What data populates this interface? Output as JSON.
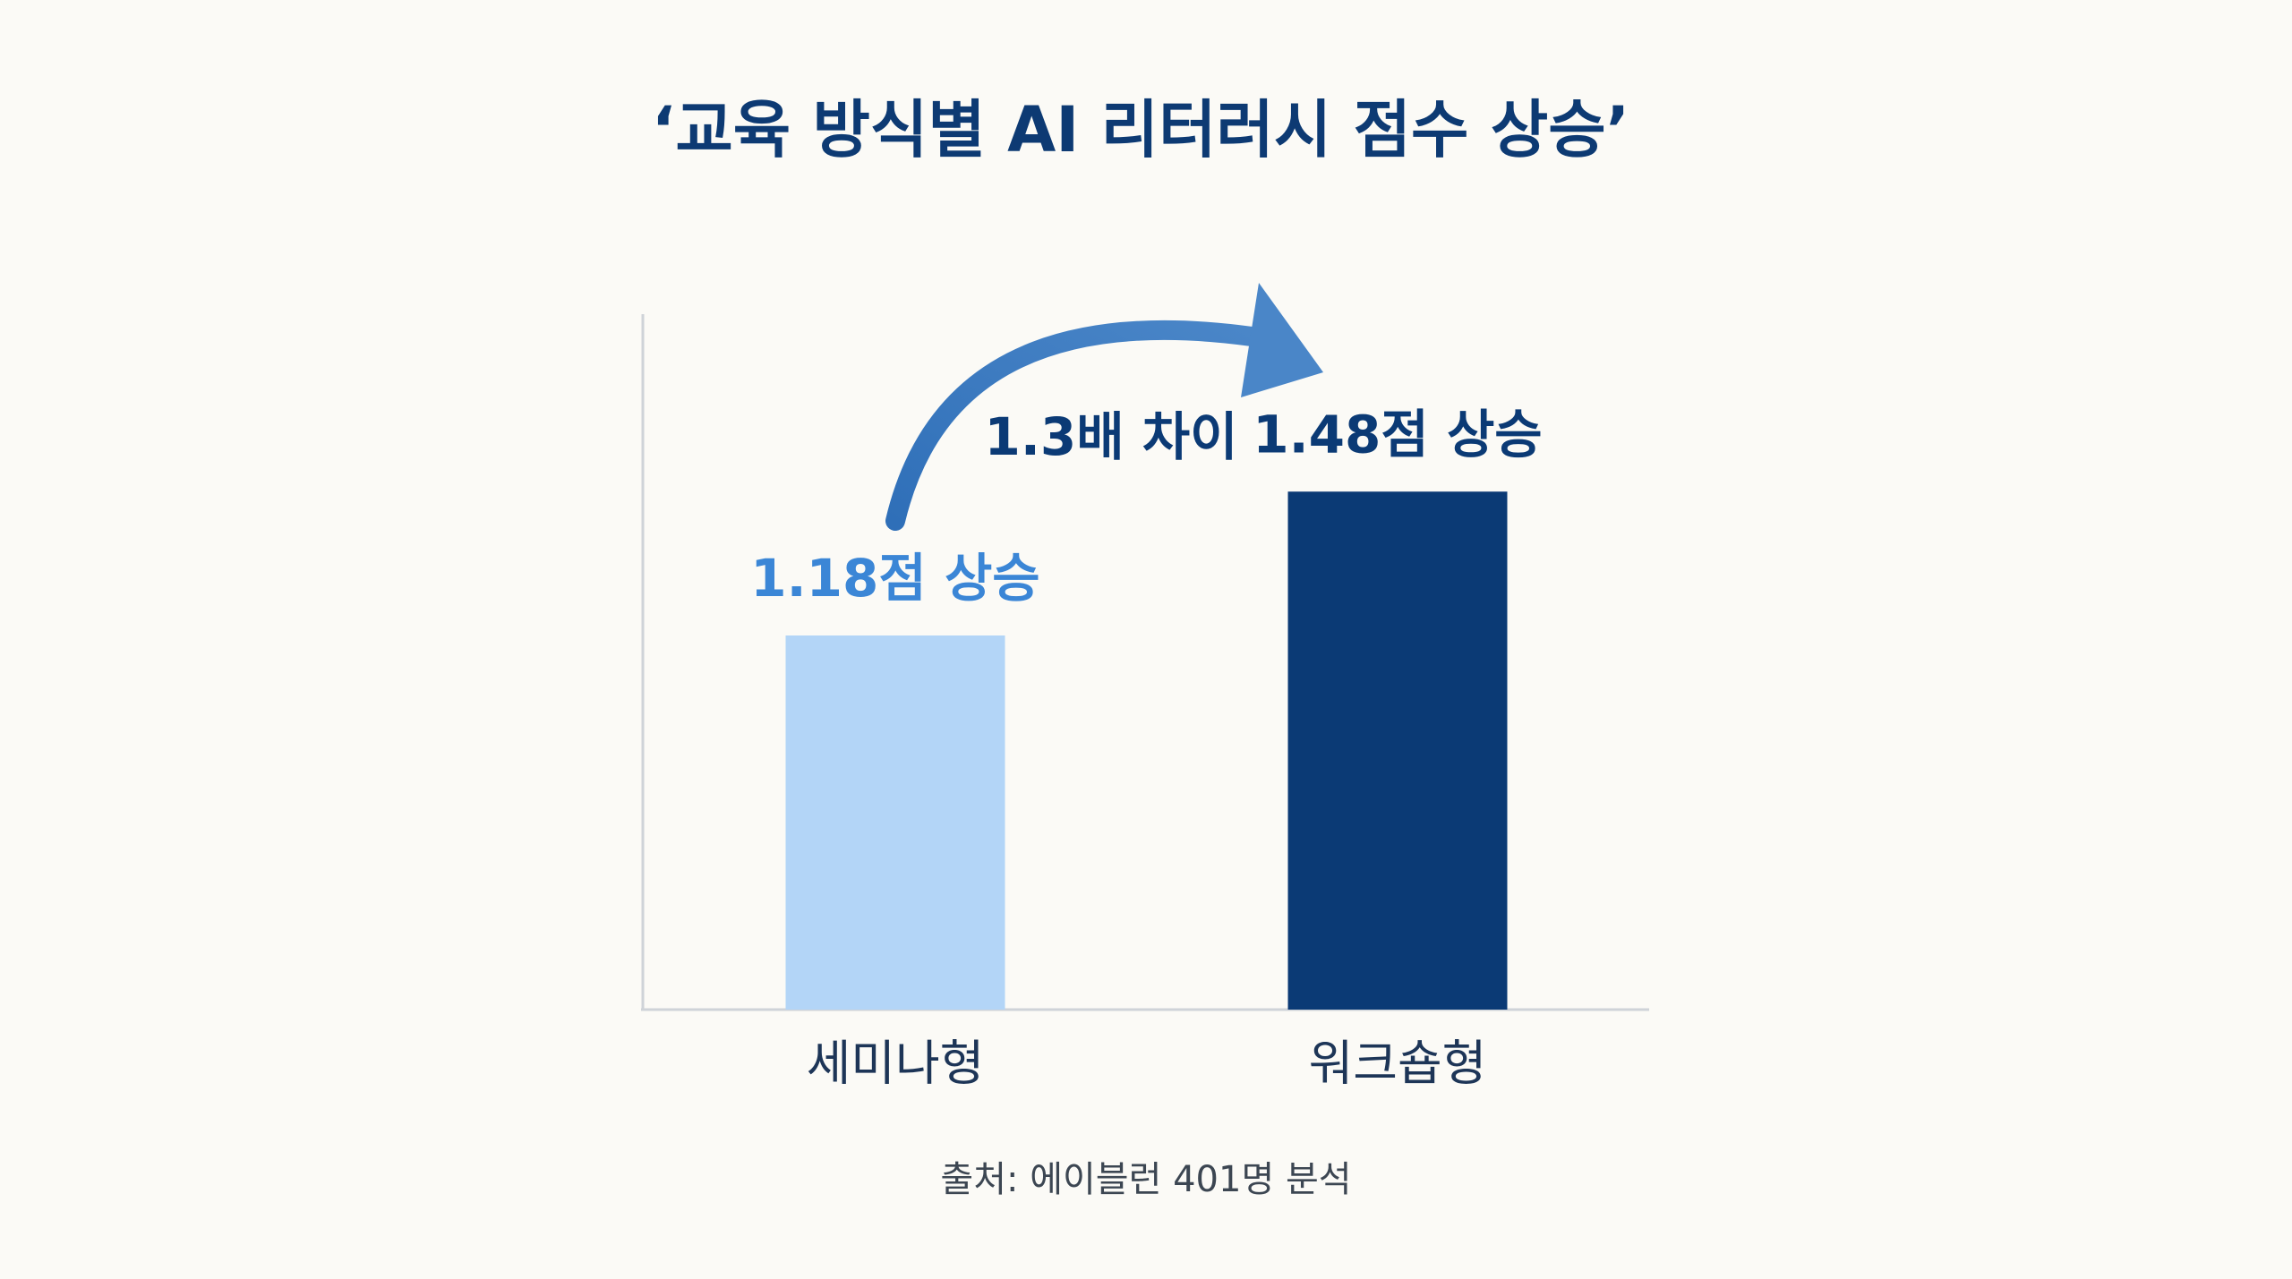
{
  "chart_data": {
    "type": "bar",
    "title": "‘교육 방식별 AI 리터러시 점수 상승’",
    "categories": [
      "세미나형",
      "워크숍형"
    ],
    "values": [
      1.18,
      1.48
    ],
    "value_labels": [
      "1.18점 상승",
      "1.48점 상승"
    ],
    "colors": [
      "#b3d5f7",
      "#0b3a75"
    ],
    "label_colors": [
      "#3b86d6",
      "#0b3a75"
    ],
    "annotation": "1.3배 차이",
    "source": "출처: 에이블런 401명 분석",
    "ylim": [
      0.4,
      1.85
    ],
    "grid": false
  }
}
